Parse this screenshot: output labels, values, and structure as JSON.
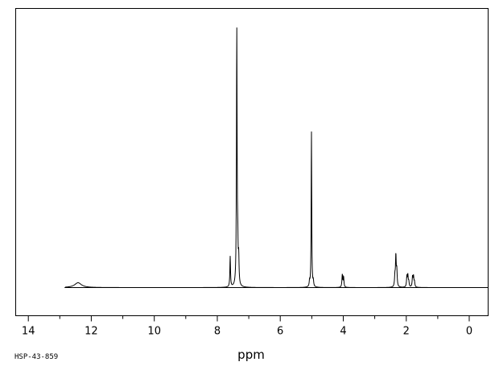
{
  "chart_data": {
    "type": "line",
    "title": "",
    "xlabel": "ppm",
    "ylabel": "",
    "xlim": [
      14.4,
      -0.6
    ],
    "x_reversed": true,
    "x_ticks": [
      14,
      12,
      10,
      8,
      6,
      4,
      2,
      0
    ],
    "x_tick_labels": [
      "14",
      "12",
      "10",
      "8",
      "6",
      "4",
      "2",
      "0"
    ],
    "x_minor_step": 1,
    "grid": false,
    "legend": "none",
    "line_color": "#000000",
    "series": [
      {
        "peaks": [
          {
            "ppm": 12.42,
            "height": 0.019,
            "width": 0.13
          },
          {
            "ppm": 7.59,
            "height": 0.12,
            "width": 0.012
          },
          {
            "ppm": 7.38,
            "height": 1.0,
            "width": 0.012
          },
          {
            "ppm": 7.35,
            "height": 0.13,
            "width": 0.012
          },
          {
            "ppm": 7.32,
            "height": 0.1,
            "width": 0.012
          },
          {
            "ppm": 5.01,
            "height": 0.615,
            "width": 0.01
          },
          {
            "ppm": 5.07,
            "height": 0.02,
            "width": 0.012
          },
          {
            "ppm": 4.95,
            "height": 0.02,
            "width": 0.012
          },
          {
            "ppm": 4.03,
            "height": 0.05,
            "width": 0.014
          },
          {
            "ppm": 3.99,
            "height": 0.04,
            "width": 0.014
          },
          {
            "ppm": 2.36,
            "height": 0.04,
            "width": 0.014
          },
          {
            "ppm": 2.33,
            "height": 0.12,
            "width": 0.014
          },
          {
            "ppm": 2.3,
            "height": 0.06,
            "width": 0.014
          },
          {
            "ppm": 1.98,
            "height": 0.04,
            "width": 0.014
          },
          {
            "ppm": 1.95,
            "height": 0.045,
            "width": 0.014
          },
          {
            "ppm": 1.92,
            "height": 0.02,
            "width": 0.014
          },
          {
            "ppm": 1.8,
            "height": 0.04,
            "width": 0.014
          },
          {
            "ppm": 1.77,
            "height": 0.04,
            "width": 0.014
          },
          {
            "ppm": 1.74,
            "height": 0.02,
            "width": 0.014
          }
        ]
      }
    ],
    "baseline_ppm_range": [
      12.85,
      -0.6
    ]
  },
  "footer": {
    "code": "HSP-43-859"
  }
}
